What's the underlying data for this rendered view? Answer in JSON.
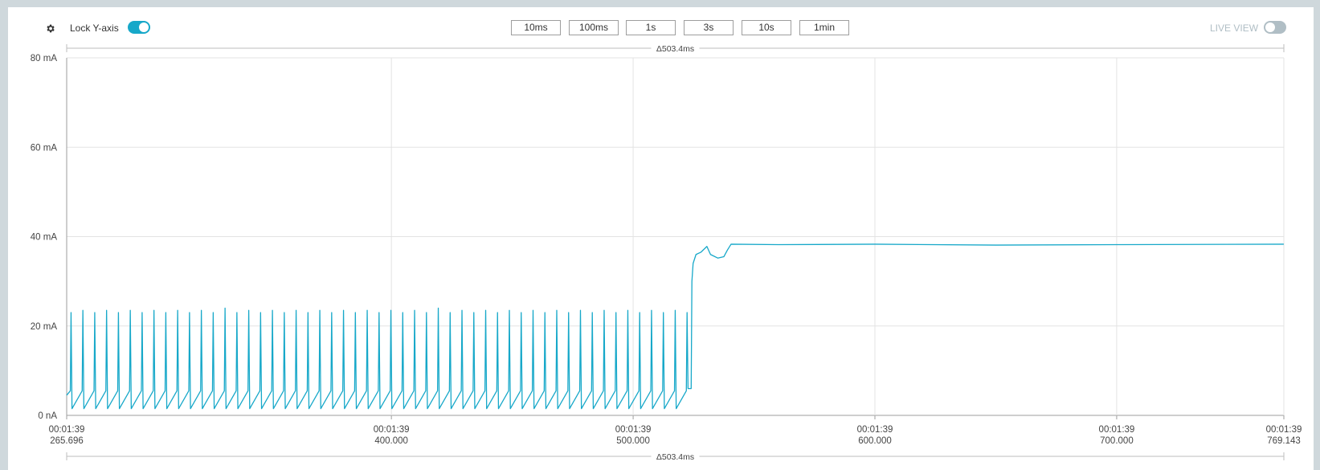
{
  "toolbar": {
    "lock_label": "Lock Y-axis",
    "lock_y_axis": true,
    "windows": [
      "10ms",
      "100ms",
      "1s",
      "3s",
      "10s",
      "1min"
    ],
    "live_label": "LIVE VIEW",
    "live_view": false
  },
  "chart_data": {
    "type": "line",
    "annotation_top": "Δ503.4ms",
    "annotation_bottom": "Δ503.4ms",
    "xlim": [
      265.696,
      769.143
    ],
    "xticks": [
      {
        "value": 265.696,
        "label": [
          "00:01:39",
          "265.696"
        ]
      },
      {
        "value": 400,
        "label": [
          "00:01:39",
          "400.000"
        ]
      },
      {
        "value": 500,
        "label": [
          "00:01:39",
          "500.000"
        ]
      },
      {
        "value": 600,
        "label": [
          "00:01:39",
          "600.000"
        ]
      },
      {
        "value": 700,
        "label": [
          "00:01:39",
          "700.000"
        ]
      },
      {
        "value": 769.143,
        "label": [
          "00:01:39",
          "769.143"
        ]
      }
    ],
    "ylim": [
      0,
      80
    ],
    "yticks": [
      {
        "value": 0,
        "label": "0 nA"
      },
      {
        "value": 20,
        "label": "20 mA"
      },
      {
        "value": 40,
        "label": "40 mA"
      },
      {
        "value": 60,
        "label": "60 mA"
      },
      {
        "value": 80,
        "label": "80 mA"
      }
    ],
    "grid": true,
    "x": [
      265.7,
      267.2,
      267.5,
      267.9,
      272.1,
      272.4,
      272.8,
      277.0,
      277.3,
      277.7,
      281.9,
      282.2,
      282.6,
      286.8,
      287.1,
      287.5,
      291.7,
      292.0,
      292.4,
      296.6,
      296.9,
      297.3,
      301.5,
      301.8,
      302.2,
      306.4,
      306.7,
      307.1,
      311.3,
      311.6,
      312.0,
      316.2,
      316.5,
      316.9,
      321.1,
      321.4,
      321.8,
      326.0,
      326.3,
      326.7,
      330.9,
      331.2,
      331.6,
      335.8,
      336.1,
      336.5,
      340.7,
      341.0,
      341.4,
      345.6,
      345.9,
      346.3,
      350.5,
      350.8,
      351.2,
      355.4,
      355.7,
      356.1,
      360.3,
      360.6,
      361.0,
      365.2,
      365.5,
      365.9,
      370.1,
      370.4,
      370.8,
      375.0,
      375.3,
      375.7,
      379.9,
      380.2,
      380.6,
      384.8,
      385.1,
      385.5,
      389.7,
      390.0,
      390.4,
      394.6,
      394.9,
      395.3,
      399.5,
      399.8,
      400.2,
      404.4,
      404.7,
      405.1,
      409.3,
      409.6,
      410.0,
      414.2,
      414.5,
      414.9,
      419.1,
      419.4,
      419.8,
      424.0,
      424.3,
      424.7,
      428.9,
      429.2,
      429.6,
      433.8,
      434.1,
      434.5,
      438.7,
      439.0,
      439.4,
      443.6,
      443.9,
      444.3,
      448.5,
      448.8,
      449.2,
      453.4,
      453.7,
      454.1,
      458.3,
      458.6,
      459.0,
      463.2,
      463.5,
      463.9,
      468.1,
      468.4,
      468.8,
      473.0,
      473.3,
      473.7,
      477.9,
      478.2,
      478.6,
      482.8,
      483.1,
      483.5,
      487.7,
      488.0,
      488.4,
      492.6,
      492.9,
      493.3,
      497.5,
      497.8,
      498.2,
      502.4,
      502.7,
      503.1,
      507.3,
      507.6,
      508.0,
      512.2,
      512.5,
      512.9,
      517.1,
      517.4,
      517.8,
      522.0,
      522.3,
      522.7,
      524.0,
      524.3,
      524.8,
      526.0,
      528.0,
      530.5,
      532.0,
      535.0,
      537.5,
      539.0,
      540.5,
      560.0,
      600.0,
      650.0,
      700.0,
      769.1
    ],
    "series": [
      {
        "name": "Current",
        "color": "#17a8c9",
        "values": [
          4.5,
          5.5,
          23,
          1.5,
          5.5,
          23.5,
          1.5,
          5.5,
          23,
          1.5,
          5.5,
          23.5,
          1.5,
          5.5,
          23,
          1.5,
          5.5,
          23.5,
          1.5,
          5.5,
          23,
          1.5,
          5.5,
          23.5,
          1.5,
          5.5,
          23,
          1.5,
          5.5,
          23.5,
          1.5,
          5.5,
          23,
          1.5,
          5.5,
          23.5,
          1.5,
          5.5,
          23,
          1.5,
          5.5,
          24,
          1.5,
          5.5,
          23,
          1.5,
          5.5,
          23.5,
          1.5,
          5.5,
          23,
          1.5,
          5.5,
          23.5,
          1.5,
          5.5,
          23,
          1.5,
          5.5,
          23.5,
          1.5,
          5.5,
          23,
          1.5,
          5.5,
          23.5,
          1.5,
          5.5,
          23,
          1.5,
          5.5,
          23.5,
          1.5,
          5.5,
          23,
          1.5,
          5.5,
          23.5,
          1.5,
          5.5,
          23,
          1.5,
          5.5,
          23.5,
          1.5,
          5.5,
          23,
          1.5,
          5.5,
          23.5,
          1.5,
          5.5,
          23,
          1.5,
          5.5,
          24,
          1.5,
          5.5,
          23,
          1.5,
          5.5,
          23.5,
          1.5,
          5.5,
          23,
          1.5,
          5.5,
          23.5,
          1.5,
          5.5,
          23,
          1.5,
          5.5,
          23.5,
          1.5,
          5.5,
          23,
          1.5,
          5.5,
          23.5,
          1.5,
          5.5,
          23,
          1.5,
          5.5,
          23.5,
          1.5,
          5.5,
          23,
          1.5,
          5.5,
          23.5,
          1.5,
          5.5,
          23,
          1.5,
          5.5,
          23.5,
          1.5,
          5.5,
          23,
          1.5,
          5.5,
          23.5,
          1.5,
          5.5,
          23,
          1.5,
          5.5,
          23.5,
          1.5,
          5.5,
          23,
          1.5,
          5.5,
          23.5,
          1.5,
          5.5,
          23,
          6,
          6,
          30,
          34,
          36,
          36.5,
          37.8,
          36,
          35.2,
          35.5,
          37,
          38.3,
          38.2,
          38.3,
          38.1,
          38.2,
          38.3
        ]
      }
    ]
  }
}
